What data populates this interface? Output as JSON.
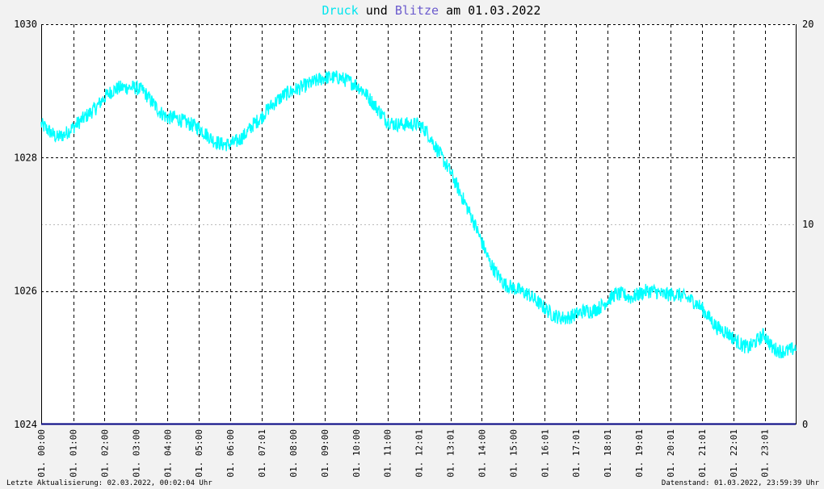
{
  "title": {
    "part1": "Druck",
    "part2": " und ",
    "part3": "Blitze",
    "part4": " am 01.03.2022"
  },
  "colors": {
    "pressure": "#00ffff",
    "lightning": "#6a5acd",
    "bottom_line": "#000080",
    "text": "#000000",
    "background": "#ffffff"
  },
  "footer": {
    "left": "Letzte Aktualisierung: 02.03.2022, 00:02:04 Uhr",
    "right": "Datenstand: 01.03.2022, 23:59:39 Uhr"
  },
  "chart_data": {
    "type": "line",
    "x_unit": "hour",
    "xlim": [
      0,
      24
    ],
    "ylim_left": [
      1024,
      1030
    ],
    "ylim_right": [
      0,
      20
    ],
    "yticks_left": [
      "1024",
      "1026",
      "1028",
      "1030"
    ],
    "yticks_right": [
      "0",
      "10",
      "20"
    ],
    "xtick_labels": [
      "01. 00:00",
      "01. 01:00",
      "01. 02:00",
      "01. 03:00",
      "01. 04:00",
      "01. 05:00",
      "01. 06:00",
      "01. 07:01",
      "01. 08:00",
      "01. 09:00",
      "01. 10:00",
      "01. 11:00",
      "01. 12:01",
      "01. 13:01",
      "01. 14:00",
      "01. 15:00",
      "01. 16:01",
      "01. 17:01",
      "01. 18:01",
      "01. 19:01",
      "01. 20:01",
      "01. 21:01",
      "01. 22:01",
      "01. 23:01"
    ],
    "grid": true,
    "series": [
      {
        "name": "Druck",
        "axis": "left",
        "color": "#00ffff",
        "x": [
          0,
          0.25,
          0.5,
          0.75,
          1,
          1.25,
          1.5,
          1.75,
          2,
          2.25,
          2.5,
          2.75,
          3,
          3.25,
          3.5,
          3.75,
          4,
          4.25,
          4.5,
          4.75,
          5,
          5.25,
          5.5,
          5.75,
          6,
          6.25,
          6.5,
          6.75,
          7,
          7.25,
          7.5,
          7.75,
          8,
          8.25,
          8.5,
          8.75,
          9,
          9.25,
          9.5,
          9.75,
          10,
          10.25,
          10.5,
          10.75,
          11,
          11.25,
          11.5,
          11.75,
          12,
          12.25,
          12.5,
          12.75,
          13,
          13.25,
          13.5,
          13.75,
          14,
          14.25,
          14.5,
          14.75,
          15,
          15.25,
          15.5,
          15.75,
          16,
          16.25,
          16.5,
          16.75,
          17,
          17.25,
          17.5,
          17.75,
          18,
          18.25,
          18.5,
          18.75,
          19,
          19.25,
          19.5,
          19.75,
          20,
          20.25,
          20.5,
          20.75,
          21,
          21.25,
          21.5,
          21.75,
          22,
          22.25,
          22.5,
          22.75,
          23,
          23.25,
          23.5,
          23.75,
          24
        ],
        "values": [
          1028.5,
          1028.4,
          1028.3,
          1028.35,
          1028.45,
          1028.55,
          1028.65,
          1028.75,
          1028.9,
          1029.0,
          1029.05,
          1029.05,
          1029.05,
          1029.0,
          1028.85,
          1028.7,
          1028.6,
          1028.6,
          1028.55,
          1028.5,
          1028.45,
          1028.35,
          1028.25,
          1028.2,
          1028.2,
          1028.25,
          1028.35,
          1028.5,
          1028.6,
          1028.75,
          1028.85,
          1028.95,
          1029.0,
          1029.05,
          1029.1,
          1029.15,
          1029.2,
          1029.2,
          1029.2,
          1029.15,
          1029.1,
          1029.0,
          1028.85,
          1028.7,
          1028.55,
          1028.5,
          1028.5,
          1028.5,
          1028.5,
          1028.4,
          1028.2,
          1028.0,
          1027.8,
          1027.55,
          1027.3,
          1027.05,
          1026.75,
          1026.45,
          1026.25,
          1026.1,
          1026.05,
          1026.0,
          1025.95,
          1025.85,
          1025.75,
          1025.65,
          1025.6,
          1025.6,
          1025.65,
          1025.7,
          1025.7,
          1025.75,
          1025.85,
          1025.95,
          1025.95,
          1025.9,
          1025.95,
          1026.0,
          1026.0,
          1025.95,
          1025.95,
          1025.95,
          1025.9,
          1025.85,
          1025.75,
          1025.6,
          1025.45,
          1025.4,
          1025.3,
          1025.2,
          1025.15,
          1025.25,
          1025.35,
          1025.15,
          1025.1,
          1025.1,
          1025.15
        ]
      },
      {
        "name": "Blitze",
        "axis": "right",
        "color": "#000080",
        "x": [
          0,
          24
        ],
        "values": [
          0,
          0
        ]
      }
    ]
  }
}
